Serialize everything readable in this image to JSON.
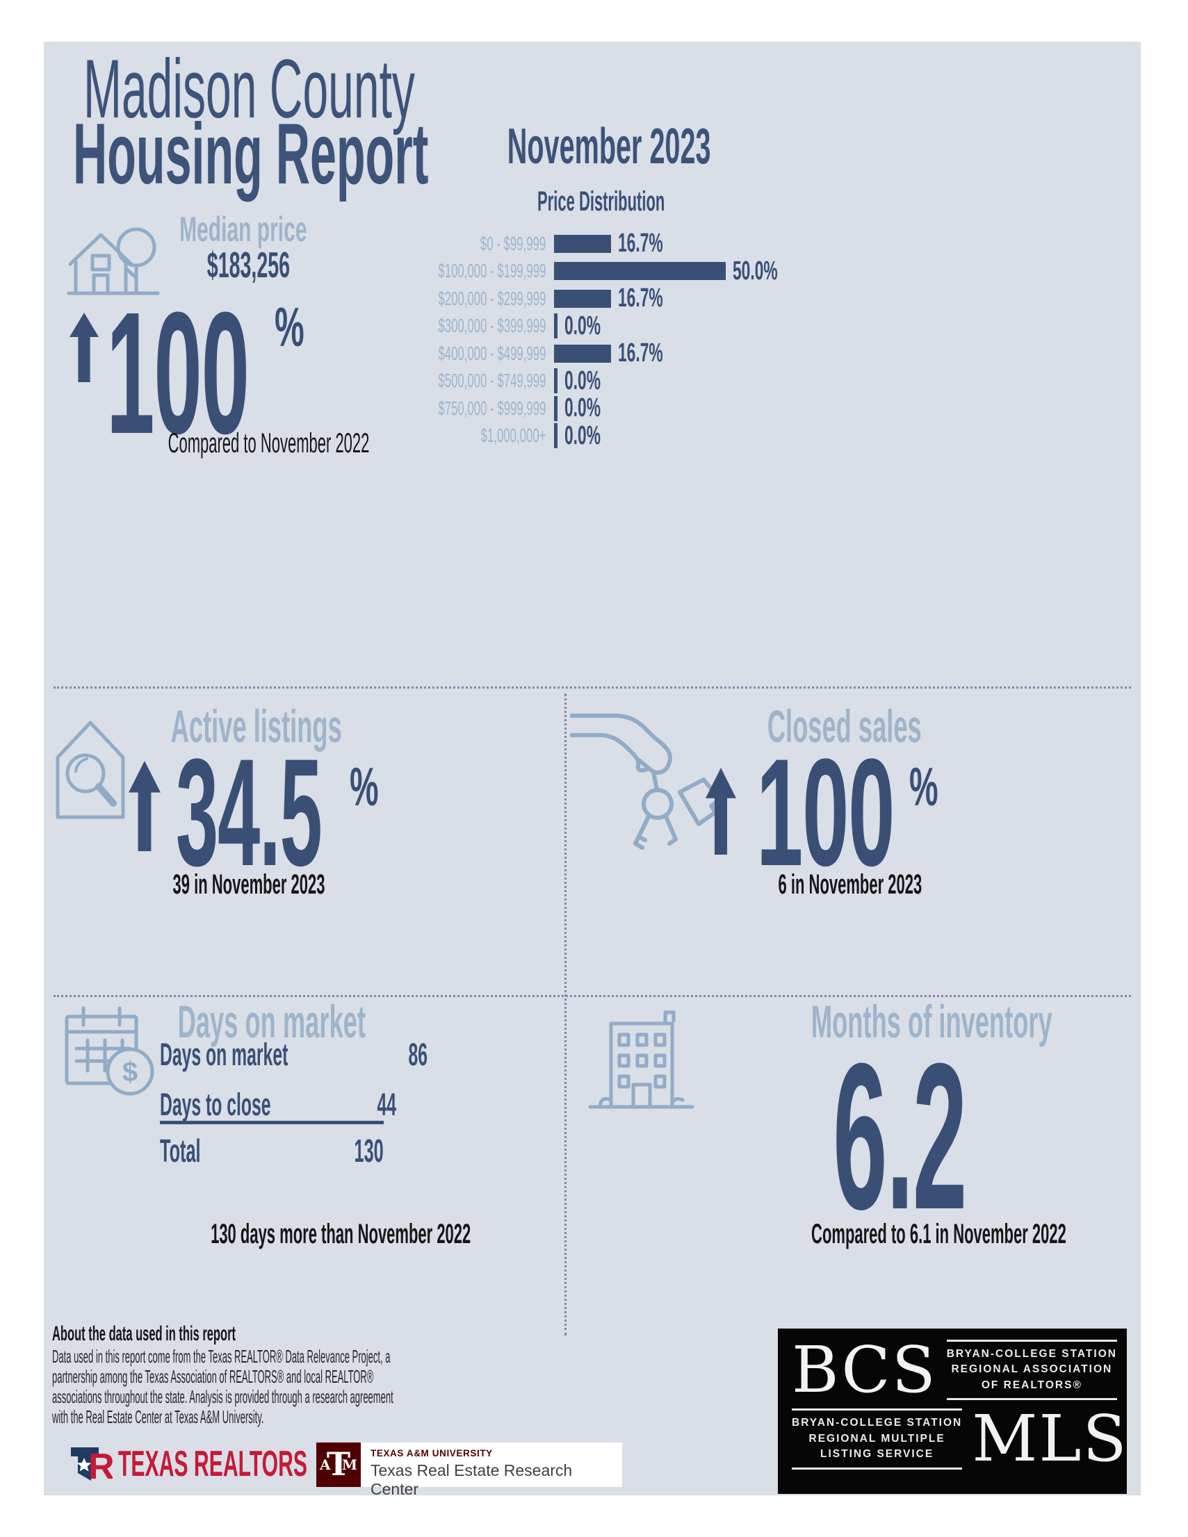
{
  "header": {
    "title_line1": "Madison County",
    "title_line2": "Housing Report",
    "period": "November 2023"
  },
  "median_price": {
    "label": "Median price",
    "value": "$183,256",
    "change": "100",
    "percent": "%",
    "note": "Compared to November 2022"
  },
  "chart_data": {
    "type": "bar",
    "orientation": "horizontal",
    "title": "Price Distribution",
    "categories": [
      "$0 - $99,999",
      "$100,000 - $199,999",
      "$200,000 - $299,999",
      "$300,000 - $399,999",
      "$400,000 - $499,999",
      "$500,000 - $749,999",
      "$750,000 - $999,999",
      "$1,000,000+"
    ],
    "values": [
      16.7,
      50.0,
      16.7,
      0.0,
      16.7,
      0.0,
      0.0,
      0.0
    ],
    "value_labels": [
      "16.7%",
      "50.0%",
      "16.7%",
      "0.0%",
      "16.7%",
      "0.0%",
      "0.0%",
      "0.0%"
    ],
    "xlim": [
      0,
      50
    ],
    "grid": false,
    "bar_color": "#3a4f76",
    "category_label_color": "#9fb4cb"
  },
  "active_listings": {
    "label": "Active listings",
    "change": "34.5",
    "percent": "%",
    "note": "39 in November 2023"
  },
  "closed_sales": {
    "label": "Closed sales",
    "change": "100",
    "percent": "%",
    "note": "6 in November 2023"
  },
  "days_on_market": {
    "label": "Days on market",
    "rows": [
      {
        "label": "Days on market",
        "value": "86"
      },
      {
        "label": "Days to close",
        "value": "44"
      }
    ],
    "total_label": "Total",
    "total_value": "130",
    "note": "130 days more than November 2022"
  },
  "months_of_inventory": {
    "label": "Months of inventory",
    "value": "6.2",
    "note": "Compared to 6.1 in November 2022"
  },
  "about": {
    "title": "About the data used in this report",
    "body_lines": [
      "Data used in this report come from the Texas REALTOR® Data Relevance Project, a",
      "partnership among the Texas Association of REALTORS® and local REALTOR®",
      "associations throughout the state. Analysis is provided through a research agreement",
      "with the Real Estate Center at Texas A&M University."
    ]
  },
  "logos": {
    "texas_realtors": {
      "text": "TEXAS REALTORS"
    },
    "tamu": {
      "line1": "TEXAS A&M UNIVERSITY",
      "line2": "Texas Real Estate Research Center"
    },
    "bcs_mls": {
      "acronym_top": "BCS",
      "assoc_lines": [
        "BRYAN-COLLEGE STATION",
        "REGIONAL ASSOCIATION",
        "OF REALTORS®"
      ],
      "mls_lines": [
        "BRYAN-COLLEGE STATION",
        "REGIONAL MULTIPLE",
        "LISTING SERVICE"
      ],
      "acronym_bottom": "MLS"
    }
  },
  "icons": {
    "median_price": "house-with-tree-icon",
    "active_listings": "house-with-magnifier-icon",
    "closed_sales": "hand-with-keys-icon",
    "days_on_market": "calendar-dollar-icon",
    "months_of_inventory": "apartment-building-icon",
    "change_direction": "up-arrow-icon"
  },
  "colors": {
    "page_background": "#ffffff",
    "panel_background": "#d9dee7",
    "navy": "#3a4f76",
    "light_blue": "#9fb4cb",
    "icon_blue": "#92abc7",
    "black_text": "#191919",
    "dotted_divider": "#7e8aa8",
    "realtor_red": "#c51935",
    "realtor_navy": "#223a63",
    "tamu_maroon": "#500000",
    "bcs_background": "#060606"
  }
}
